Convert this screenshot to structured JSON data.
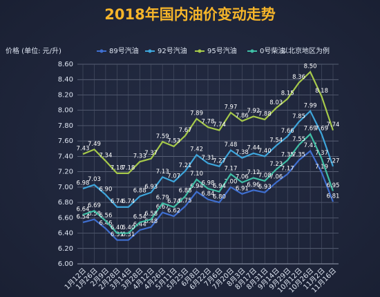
{
  "chart_data": {
    "type": "line",
    "title": "2018年国内油价变动走势",
    "y_label": "价格 (单位: 元/升)",
    "annotation": "以北京地区为例",
    "categories": [
      "1月12日",
      "1月26日",
      "2月9日",
      "2月28日",
      "3月14日",
      "3月28日",
      "4月12日",
      "4月26日",
      "5月11日",
      "5月25日",
      "6月8日",
      "6月22日",
      "7月6日",
      "7月20日",
      "8月3日",
      "8月17日",
      "8月31日",
      "9月14日",
      "9月29日",
      "10月12日",
      "10月26日",
      "11月2日",
      "11月16日"
    ],
    "series": [
      {
        "name": "89号汽油",
        "color": "#3f6fd0",
        "values": [
          6.54,
          6.58,
          6.46,
          6.31,
          6.31,
          6.44,
          6.48,
          6.67,
          6.62,
          6.75,
          6.94,
          6.84,
          6.8,
          7.0,
          6.91,
          6.96,
          6.93,
          7.06,
          7.17,
          7.35,
          7.47,
          7.19,
          6.81
        ],
        "value_labels": [
          "6.54",
          "6.58",
          "6.46",
          "6.31",
          "6.31",
          "6.44",
          "6.48",
          "6.67",
          "6.62",
          "6.75",
          "6.94",
          "6.84",
          "6.80",
          "7.00",
          "6.91",
          "6.96",
          "6.93",
          "7.06",
          "7.17",
          "7.35",
          "7.47",
          "7.19",
          "6.81"
        ]
      },
      {
        "name": "92号汽油",
        "color": "#3ea6dc",
        "values": [
          6.98,
          7.03,
          6.9,
          6.74,
          6.74,
          6.88,
          6.93,
          7.13,
          7.07,
          7.21,
          7.42,
          7.31,
          7.27,
          7.48,
          7.38,
          7.44,
          7.4,
          7.54,
          7.66,
          7.85,
          7.99,
          7.69,
          7.27
        ],
        "value_labels": [
          "6.98",
          "7.03",
          "6.90",
          "6.74",
          "6.74",
          "6.88",
          "6.93",
          "7.13",
          "7.07",
          "7.21",
          "7.42",
          "7.31",
          "7.27",
          "7.48",
          "7.38",
          "7.44",
          "7.40",
          "7.54",
          "7.66",
          "7.85",
          "7.99",
          "7.69",
          "7.27"
        ]
      },
      {
        "name": "95号汽油",
        "color": "#a6c94a",
        "values": [
          7.43,
          7.49,
          7.34,
          7.18,
          7.18,
          7.33,
          7.37,
          7.59,
          7.53,
          7.67,
          7.89,
          7.78,
          7.74,
          7.97,
          7.86,
          7.92,
          7.88,
          8.03,
          8.15,
          8.36,
          8.5,
          8.18,
          7.74
        ],
        "value_labels": [
          "7.43",
          "7.49",
          "7.34",
          "7.18",
          "7.18",
          "7.33",
          "7.37",
          "7.59",
          "7.53",
          "7.67",
          "7.89",
          "7.78",
          "7.74",
          "7.97",
          "7.86",
          "7.92",
          "7.88",
          "8.03",
          "8.15",
          "8.36",
          "8.50",
          "8.18",
          "7.74"
        ]
      },
      {
        "name": "0号柴油",
        "color": "#3fbfa6",
        "values": [
          6.64,
          6.69,
          6.56,
          6.4,
          6.4,
          6.54,
          6.58,
          6.79,
          6.74,
          6.88,
          7.1,
          6.98,
          6.94,
          7.17,
          7.06,
          7.12,
          7.08,
          7.23,
          7.35,
          7.55,
          7.69,
          7.37,
          6.95
        ],
        "value_labels": [
          "6.64",
          "6.69",
          "6.56",
          "6.40",
          "6.40",
          "6.54",
          "6.58",
          "6.79",
          "6.74",
          "6.88",
          "7.10",
          "6.98",
          "6.94",
          "7.17",
          "7.06",
          "7.12",
          "7.08",
          "7.23",
          "7.35",
          "7.55",
          "7.69",
          "7.37",
          "6.95"
        ]
      }
    ],
    "ylim": [
      6.0,
      8.6
    ],
    "yticks": [
      {
        "value": 6.0,
        "label": "6.00"
      },
      {
        "value": 6.2,
        "label": "6.20"
      },
      {
        "value": 6.4,
        "label": "6.40"
      },
      {
        "value": 6.6,
        "label": "6.60"
      },
      {
        "value": 6.8,
        "label": "6.80"
      },
      {
        "value": 7.0,
        "label": "7.00"
      },
      {
        "value": 7.2,
        "label": "7.20"
      },
      {
        "value": 7.4,
        "label": "7.40"
      },
      {
        "value": 7.6,
        "label": "7.60"
      },
      {
        "value": 7.8,
        "label": "7.80"
      },
      {
        "value": 8.0,
        "label": "8.00"
      },
      {
        "value": 8.2,
        "label": "8.20"
      },
      {
        "value": 8.4,
        "label": "8.40"
      },
      {
        "value": 8.6,
        "label": "8.60"
      }
    ],
    "grid": true
  }
}
